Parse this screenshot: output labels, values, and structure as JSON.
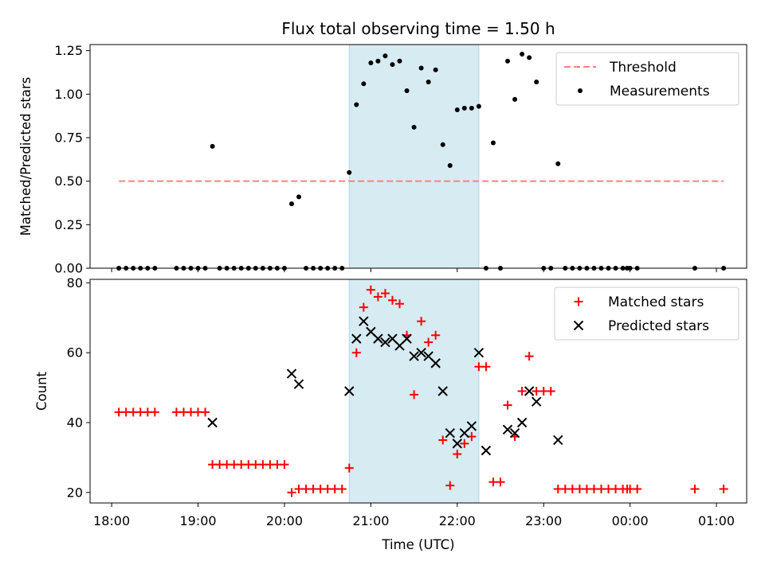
{
  "chart_data": [
    {
      "type": "scatter",
      "title": "Flux total observing time = 1.50 h",
      "xlabel": "",
      "ylabel": "Matched/Predicted stars",
      "ylim": [
        0,
        1.285
      ],
      "yticks": [
        "0.00",
        "0.25",
        "0.50",
        "0.75",
        "1.00",
        "1.25"
      ],
      "shaded_interval": [
        "20:45",
        "22:15"
      ],
      "threshold": {
        "name": "Threshold",
        "value": 0.5,
        "x_range": [
          "18:05",
          "01:05"
        ]
      },
      "series": [
        {
          "name": "Measurements",
          "x": [
            "18:05",
            "18:10",
            "18:15",
            "18:20",
            "18:25",
            "18:30",
            "18:45",
            "18:50",
            "18:55",
            "19:00",
            "19:05",
            "19:10",
            "19:15",
            "19:20",
            "19:25",
            "19:30",
            "19:35",
            "19:40",
            "19:45",
            "19:50",
            "19:55",
            "20:00",
            "20:05",
            "20:10",
            "20:15",
            "20:20",
            "20:25",
            "20:30",
            "20:35",
            "20:40",
            "20:45",
            "20:50",
            "20:55",
            "21:00",
            "21:05",
            "21:10",
            "21:15",
            "21:20",
            "21:25",
            "21:30",
            "21:35",
            "21:40",
            "21:45",
            "21:50",
            "21:55",
            "22:00",
            "22:05",
            "22:10",
            "22:15",
            "22:20",
            "22:25",
            "22:30",
            "22:35",
            "22:40",
            "22:45",
            "22:50",
            "22:55",
            "23:00",
            "23:05",
            "23:10",
            "23:15",
            "23:20",
            "23:25",
            "23:30",
            "23:35",
            "23:40",
            "23:45",
            "23:50",
            "23:55",
            "23:58",
            "00:00",
            "00:05",
            "00:45",
            "01:05"
          ],
          "y": [
            0,
            0,
            0,
            0,
            0,
            0,
            0,
            0,
            0,
            0,
            0,
            0.7,
            0,
            0,
            0,
            0,
            0,
            0,
            0,
            0,
            0,
            0,
            0.37,
            0.41,
            0,
            0,
            0,
            0,
            0,
            0,
            0.55,
            0.94,
            1.06,
            1.18,
            1.19,
            1.22,
            1.17,
            1.19,
            1.02,
            0.81,
            1.15,
            1.07,
            1.14,
            0.71,
            0.59,
            0.91,
            0.92,
            0.92,
            0.93,
            0,
            0.72,
            0,
            1.19,
            0.97,
            1.23,
            1.21,
            1.07,
            0,
            0,
            0.6,
            0,
            0,
            0,
            0,
            0,
            0,
            0,
            0,
            0,
            0,
            0,
            0,
            0,
            0
          ]
        }
      ]
    },
    {
      "type": "scatter",
      "title": "",
      "xlabel": "Time (UTC)",
      "ylabel": "Count",
      "ylim": [
        17,
        81
      ],
      "yticks": [
        "20",
        "40",
        "60",
        "80"
      ],
      "xticks": [
        "18:00",
        "19:00",
        "20:00",
        "21:00",
        "22:00",
        "23:00",
        "00:00",
        "01:00"
      ],
      "shaded_interval": [
        "20:45",
        "22:15"
      ],
      "series": [
        {
          "name": "Matched stars",
          "x": [
            "18:05",
            "18:10",
            "18:15",
            "18:20",
            "18:25",
            "18:30",
            "18:45",
            "18:50",
            "18:55",
            "19:00",
            "19:05",
            "19:10",
            "19:15",
            "19:20",
            "19:25",
            "19:30",
            "19:35",
            "19:40",
            "19:45",
            "19:50",
            "19:55",
            "20:00",
            "20:05",
            "20:10",
            "20:15",
            "20:20",
            "20:25",
            "20:30",
            "20:35",
            "20:40",
            "20:45",
            "20:50",
            "20:55",
            "21:00",
            "21:05",
            "21:10",
            "21:15",
            "21:20",
            "21:25",
            "21:30",
            "21:35",
            "21:40",
            "21:45",
            "21:50",
            "21:55",
            "22:00",
            "22:05",
            "22:10",
            "22:15",
            "22:20",
            "22:25",
            "22:30",
            "22:35",
            "22:40",
            "22:45",
            "22:50",
            "22:55",
            "23:00",
            "23:05",
            "23:10",
            "23:15",
            "23:20",
            "23:25",
            "23:30",
            "23:35",
            "23:40",
            "23:45",
            "23:50",
            "23:55",
            "23:58",
            "00:00",
            "00:05",
            "00:45",
            "01:05"
          ],
          "y": [
            43,
            43,
            43,
            43,
            43,
            43,
            43,
            43,
            43,
            43,
            43,
            28,
            28,
            28,
            28,
            28,
            28,
            28,
            28,
            28,
            28,
            28,
            20,
            21,
            21,
            21,
            21,
            21,
            21,
            21,
            27,
            60,
            73,
            78,
            76,
            77,
            75,
            74,
            65,
            48,
            69,
            63,
            65,
            35,
            22,
            31,
            34,
            36,
            56,
            56,
            23,
            23,
            45,
            36,
            49,
            59,
            49,
            49,
            49,
            21,
            21,
            21,
            21,
            21,
            21,
            21,
            21,
            21,
            21,
            21,
            21,
            21,
            21,
            21
          ]
        },
        {
          "name": "Predicted stars",
          "x": [
            "19:10",
            "20:05",
            "20:10",
            "20:45",
            "20:50",
            "20:55",
            "21:00",
            "21:05",
            "21:10",
            "21:15",
            "21:20",
            "21:25",
            "21:30",
            "21:35",
            "21:40",
            "21:45",
            "21:50",
            "21:55",
            "22:00",
            "22:05",
            "22:10",
            "22:15",
            "22:20",
            "22:35",
            "22:40",
            "22:45",
            "22:50",
            "22:55",
            "23:10"
          ],
          "y": [
            40,
            54,
            51,
            49,
            64,
            69,
            66,
            64,
            63,
            64,
            62,
            64,
            59,
            60,
            59,
            57,
            49,
            37,
            34,
            37,
            39,
            60,
            32,
            38,
            37,
            40,
            49,
            46,
            35
          ]
        }
      ]
    }
  ],
  "legend_top": {
    "threshold": "Threshold",
    "measurements": "Measurements"
  },
  "legend_bottom": {
    "matched": "Matched stars",
    "predicted": "Predicted stars"
  },
  "colors": {
    "matched": "#ff0000",
    "predicted": "#000000",
    "threshold": "#ff8080",
    "shade": "#add8e6",
    "measurements": "#000000"
  }
}
